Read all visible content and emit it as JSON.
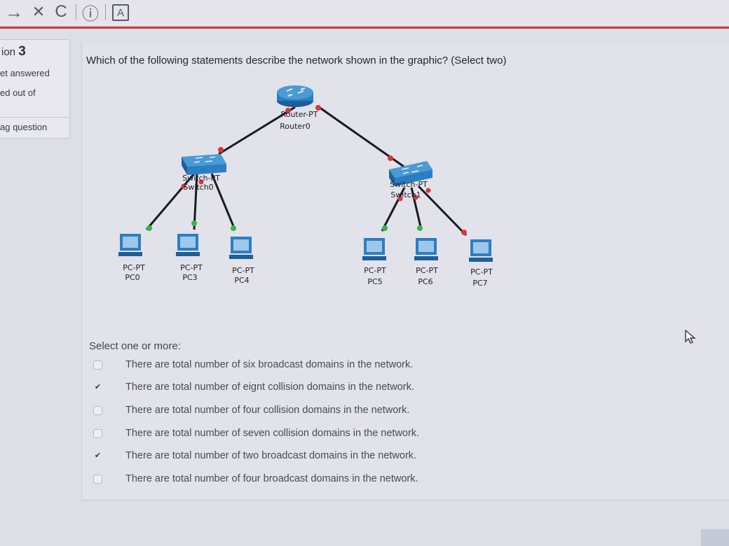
{
  "browser": {
    "back_glyph": "→",
    "close_glyph": "✕",
    "reload_glyph": "C",
    "info_glyph": "ⓘ",
    "tab_glyph": "A"
  },
  "info": {
    "question_word": "ion",
    "question_number": "3",
    "status": "et answered",
    "marked": "ed out of",
    "flag": "ag question"
  },
  "question": {
    "text": "Which of the following statements describe the network shown in the graphic? (Select two)",
    "select_prompt": "Select one or more:",
    "options": [
      {
        "label": "There are total number of six broadcast domains in the network.",
        "checked": false
      },
      {
        "label": "There are total number of eignt collision domains in the network.",
        "checked": true
      },
      {
        "label": "There are total number of four collision domains in the network.",
        "checked": false
      },
      {
        "label": "There are total number of seven collision domains in the network.",
        "checked": false
      },
      {
        "label": "There are total number of two broadcast domains in the network.",
        "checked": true
      },
      {
        "label": "There are total number of four broadcast domains in the network.",
        "checked": false
      }
    ]
  },
  "diagram": {
    "router": {
      "type": "Router-PT",
      "name": "Router0"
    },
    "switch0": {
      "type": "Switch-PT",
      "name": "Switch0"
    },
    "switch1": {
      "type": "Switch-PT",
      "name": "Switch1"
    },
    "pcs": [
      {
        "type": "PC-PT",
        "name": "PC0"
      },
      {
        "type": "PC-PT",
        "name": "PC3"
      },
      {
        "type": "PC-PT",
        "name": "PC4"
      },
      {
        "type": "PC-PT",
        "name": "PC5"
      },
      {
        "type": "PC-PT",
        "name": "PC6"
      },
      {
        "type": "PC-PT",
        "name": "PC7"
      }
    ]
  },
  "colors": {
    "link_red": "#d23a3a",
    "link_green": "#37b34a",
    "device_blue": "#2a7fc4",
    "check": "#2c3550"
  }
}
